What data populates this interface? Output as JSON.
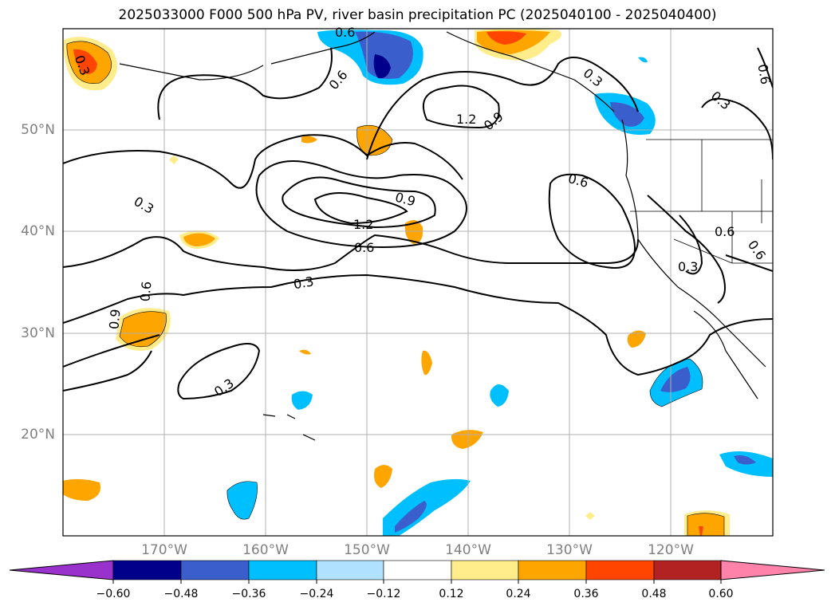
{
  "title": "2025033000 F000 500 hPa PV, river basin precipitation PC (2025040100 - 2025040400)",
  "lat_labels": [
    "50°N",
    "40°N",
    "30°N",
    "20°N"
  ],
  "lon_labels": [
    "170°W",
    "160°W",
    "150°W",
    "140°W",
    "130°W",
    "120°W"
  ],
  "contour_labels": [
    "0.3",
    "0.6",
    "1.2",
    "0.9",
    "0.6",
    "0.3",
    "0.6",
    "0.3",
    "0.3",
    "0.6",
    "1.2",
    "0.9",
    "0.6",
    "0.3",
    "0.6",
    "0.6",
    "0.9",
    "0.3",
    "0.6",
    "0.3",
    "0.6"
  ],
  "colorbar": {
    "ticks": [
      "−0.60",
      "−0.48",
      "−0.36",
      "−0.24",
      "−0.12",
      "0.12",
      "0.24",
      "0.36",
      "0.48",
      "0.60"
    ],
    "colors": [
      "#9932cc",
      "#00008b",
      "#3a5fcd",
      "#00bfff",
      "#b0e2ff",
      "#ffffff",
      "#ffec8b",
      "#ffa500",
      "#ff4500",
      "#b22222",
      "#ff82ab"
    ]
  },
  "map": {
    "lon_range": [
      -180,
      -110
    ],
    "lat_range": [
      10,
      60
    ],
    "grid": true,
    "fields": [
      "500 hPa PV (contours)",
      "river basin precipitation PC (shaded)"
    ]
  }
}
